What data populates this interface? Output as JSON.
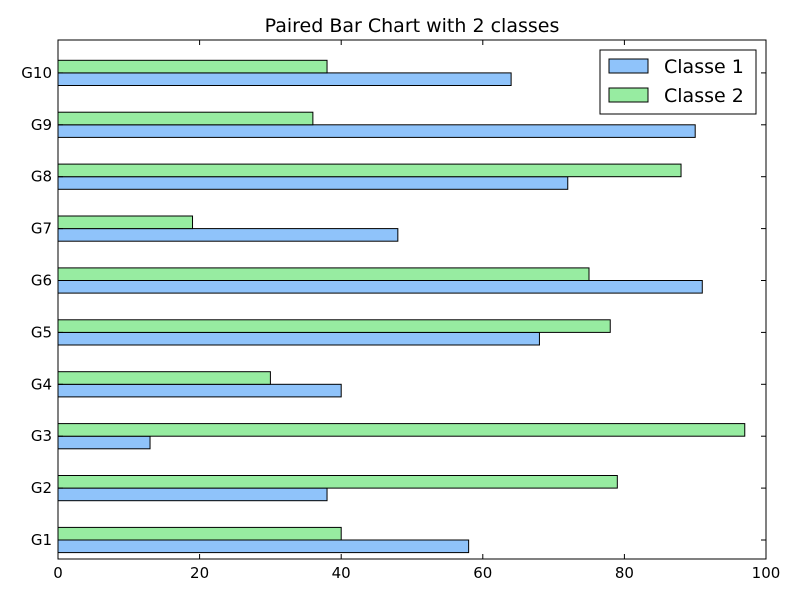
{
  "chart_data": {
    "type": "bar",
    "orientation": "horizontal",
    "title": "Paired Bar Chart with 2 classes",
    "xlabel": "",
    "ylabel": "",
    "xlim": [
      0,
      100
    ],
    "xticks": [
      0,
      20,
      40,
      60,
      80,
      100
    ],
    "categories": [
      "G1",
      "G2",
      "G3",
      "G4",
      "G5",
      "G6",
      "G7",
      "G8",
      "G9",
      "G10"
    ],
    "series": [
      {
        "name": "Classe 1",
        "color": "#8fc3fa",
        "values": [
          58,
          38,
          13,
          40,
          68,
          91,
          48,
          72,
          90,
          64
        ]
      },
      {
        "name": "Classe 2",
        "color": "#97eca1",
        "values": [
          40,
          79,
          97,
          30,
          78,
          75,
          19,
          88,
          36,
          38
        ]
      }
    ],
    "grid": false,
    "legend": "top-right"
  }
}
